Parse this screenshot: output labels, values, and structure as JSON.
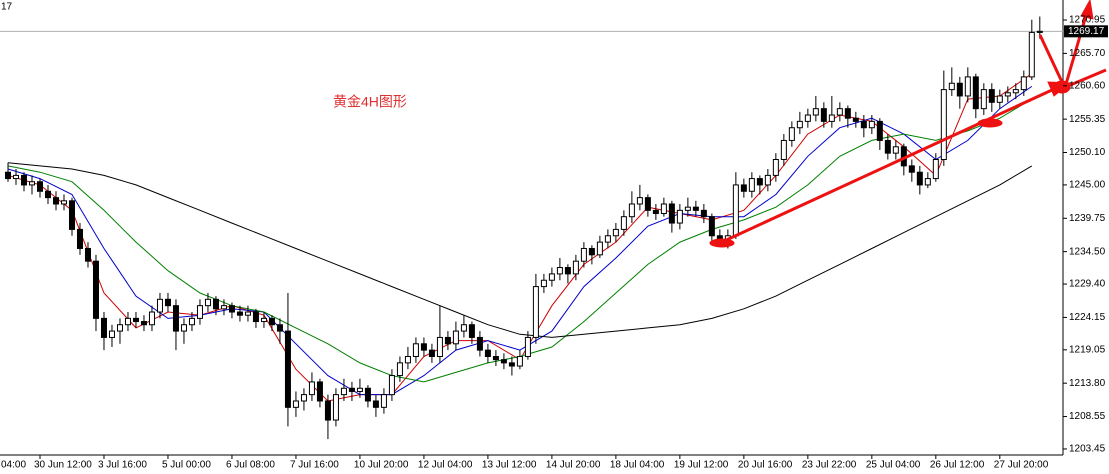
{
  "chart_data": {
    "type": "candlestick",
    "corner_label": "17",
    "annotation": "黄金4H图形",
    "last_price": 1269.17,
    "xlim": [
      -1,
      131.9
    ],
    "ylim": [
      1202.5,
      1274.1
    ],
    "yticks": [
      1203.45,
      1208.55,
      {
        "value": 1213.8,
        "label": "1213.80"
      },
      1219.05,
      1224.15,
      {
        "value": 1229.4,
        "label": "1229.40"
      },
      {
        "value": 1234.5,
        "label": "1234.50"
      },
      1239.75,
      {
        "value": 1245,
        "label": "1245.00"
      },
      {
        "value": 1250.1,
        "label": "1250.10"
      },
      1255.35,
      {
        "value": 1260.6,
        "label": "1260.60"
      },
      {
        "value": 1265.7,
        "label": "1265.70"
      },
      1270.95
    ],
    "xticks": [
      {
        "value": -4,
        "label": "04:00"
      },
      {
        "value": 4,
        "label": "30 Jun 12:00"
      },
      {
        "value": 12,
        "label": "3 Jul 16:00"
      },
      {
        "value": 20,
        "label": "5 Jul 00:00"
      },
      {
        "value": 28,
        "label": "6 Jul 08:00"
      },
      {
        "value": 36,
        "label": "7 Jul 16:00"
      },
      {
        "value": 44,
        "label": "10 Jul 20:00"
      },
      {
        "value": 52,
        "label": "12 Jul 04:00"
      },
      {
        "value": 60,
        "label": "13 Jul 12:00"
      },
      {
        "value": 68,
        "label": "14 Jul 20:00"
      },
      {
        "value": 76,
        "label": "18 Jul 04:00"
      },
      {
        "value": 84,
        "label": "19 Jul 12:00"
      },
      {
        "value": 92,
        "label": "20 Jul 16:00"
      },
      {
        "value": 100,
        "label": "23 Jul 22:00"
      },
      {
        "value": 108,
        "label": "25 Jul 04:00"
      },
      {
        "value": 116,
        "label": "26 Jul 12:00"
      },
      {
        "value": 124,
        "label": "27 Jul 20:00"
      }
    ],
    "up_color": "#ffffff",
    "down_color": "#000000",
    "wick_color": "#000000",
    "ohlc": [
      [
        1247,
        1248.5,
        1245.5,
        1246
      ],
      [
        1246,
        1247.5,
        1245,
        1246.5
      ],
      [
        1246.5,
        1247,
        1244,
        1245
      ],
      [
        1245,
        1246.5,
        1243.5,
        1245.5
      ],
      [
        1245.5,
        1246,
        1243,
        1244
      ],
      [
        1244,
        1245,
        1242,
        1243
      ],
      [
        1243,
        1244,
        1241,
        1242
      ],
      [
        1242,
        1243.5,
        1241,
        1242.5
      ],
      [
        1242.5,
        1243,
        1237,
        1238
      ],
      [
        1238,
        1239,
        1234,
        1235
      ],
      [
        1235,
        1236,
        1232,
        1233
      ],
      [
        1233,
        1234,
        1222,
        1224
      ],
      [
        1224,
        1225,
        1219,
        1221
      ],
      [
        1221,
        1223,
        1219.5,
        1222
      ],
      [
        1222,
        1224,
        1220,
        1223
      ],
      [
        1223,
        1225,
        1222,
        1224
      ],
      [
        1224,
        1225,
        1222.5,
        1223.5
      ],
      [
        1223.5,
        1224.5,
        1222,
        1223
      ],
      [
        1223,
        1226,
        1222,
        1225
      ],
      [
        1225,
        1228,
        1224,
        1227
      ],
      [
        1227,
        1228,
        1225,
        1226
      ],
      [
        1226,
        1227,
        1219,
        1222
      ],
      [
        1222,
        1224,
        1220,
        1223
      ],
      [
        1223,
        1225,
        1222,
        1224
      ],
      [
        1224,
        1227,
        1223,
        1226
      ],
      [
        1226,
        1228,
        1225,
        1227
      ],
      [
        1227,
        1227.5,
        1224.5,
        1225.5
      ],
      [
        1225.5,
        1227,
        1224.5,
        1226
      ],
      [
        1226,
        1226.5,
        1224,
        1225
      ],
      [
        1225,
        1226,
        1223.5,
        1224.5
      ],
      [
        1224.5,
        1226,
        1223.5,
        1225
      ],
      [
        1225,
        1225.5,
        1222.5,
        1223.5
      ],
      [
        1223.5,
        1225,
        1222.5,
        1224
      ],
      [
        1224,
        1224.5,
        1222,
        1223
      ],
      [
        1223,
        1224,
        1220,
        1222
      ],
      [
        1222,
        1228,
        1207,
        1210
      ],
      [
        1210,
        1212.5,
        1208.5,
        1211
      ],
      [
        1211,
        1213,
        1209.5,
        1212
      ],
      [
        1212,
        1215.5,
        1211,
        1214
      ],
      [
        1214,
        1214.5,
        1210,
        1211
      ],
      [
        1211,
        1212,
        1205,
        1208
      ],
      [
        1208,
        1213,
        1207,
        1212
      ],
      [
        1212,
        1214.5,
        1211,
        1213
      ],
      [
        1213,
        1214,
        1211,
        1212.5
      ],
      [
        1212.5,
        1214.5,
        1211.5,
        1213
      ],
      [
        1213,
        1213.5,
        1210,
        1211
      ],
      [
        1211,
        1212,
        1208.5,
        1210
      ],
      [
        1210,
        1213,
        1209,
        1212
      ],
      [
        1212,
        1216,
        1211,
        1215
      ],
      [
        1215,
        1218,
        1214,
        1217
      ],
      [
        1217,
        1219.5,
        1216,
        1218
      ],
      [
        1218,
        1221,
        1217,
        1220
      ],
      [
        1220,
        1221,
        1218,
        1219
      ],
      [
        1219,
        1220,
        1217,
        1218
      ],
      [
        1218,
        1226,
        1217,
        1221
      ],
      [
        1221,
        1222,
        1219,
        1220
      ],
      [
        1220,
        1223.5,
        1219,
        1222
      ],
      [
        1222,
        1224.5,
        1221,
        1223
      ],
      [
        1223,
        1223.5,
        1220,
        1221
      ],
      [
        1221,
        1222,
        1218,
        1219
      ],
      [
        1219,
        1220,
        1217,
        1218
      ],
      [
        1218,
        1219,
        1216.5,
        1217.5
      ],
      [
        1217.5,
        1218.5,
        1216,
        1217
      ],
      [
        1217,
        1218,
        1215,
        1216.5
      ],
      [
        1216.5,
        1219,
        1216,
        1218
      ],
      [
        1218,
        1222,
        1217.5,
        1221
      ],
      [
        1221,
        1231,
        1220,
        1229
      ],
      [
        1229,
        1231,
        1228,
        1230
      ],
      [
        1230,
        1232,
        1229,
        1231
      ],
      [
        1231,
        1233.5,
        1230,
        1232
      ],
      [
        1232,
        1232.5,
        1229.5,
        1231
      ],
      [
        1231,
        1234,
        1230,
        1233
      ],
      [
        1233,
        1236,
        1232,
        1235
      ],
      [
        1235,
        1235.5,
        1232.5,
        1234
      ],
      [
        1234,
        1237,
        1233.5,
        1236
      ],
      [
        1236,
        1238,
        1235,
        1237
      ],
      [
        1237,
        1239,
        1236,
        1238
      ],
      [
        1238,
        1241,
        1237,
        1240
      ],
      [
        1240,
        1244,
        1239,
        1242
      ],
      [
        1242,
        1245,
        1241,
        1243
      ],
      [
        1243,
        1243.5,
        1240,
        1241
      ],
      [
        1241,
        1242,
        1239.5,
        1240.5
      ],
      [
        1240.5,
        1243,
        1240,
        1242
      ],
      [
        1242,
        1242.5,
        1237.5,
        1239
      ],
      [
        1239,
        1242,
        1238,
        1241
      ],
      [
        1241,
        1243,
        1240,
        1241.5
      ],
      [
        1241.5,
        1242.5,
        1240,
        1241
      ],
      [
        1241,
        1242,
        1239,
        1240
      ],
      [
        1240,
        1240.5,
        1236,
        1237
      ],
      [
        1237,
        1238,
        1235.5,
        1236.5
      ],
      [
        1236.5,
        1238,
        1235,
        1237
      ],
      [
        1237,
        1247,
        1236.5,
        1245
      ],
      [
        1245,
        1246,
        1243,
        1244
      ],
      [
        1244,
        1247,
        1243,
        1246
      ],
      [
        1246,
        1246.5,
        1243.5,
        1245
      ],
      [
        1245,
        1247.5,
        1244,
        1246.5
      ],
      [
        1246.5,
        1250,
        1245.5,
        1249
      ],
      [
        1249,
        1253,
        1248,
        1252
      ],
      [
        1252,
        1255,
        1251,
        1254
      ],
      [
        1254,
        1256.5,
        1253,
        1255
      ],
      [
        1255,
        1257,
        1254,
        1256
      ],
      [
        1256,
        1259,
        1255,
        1257
      ],
      [
        1257,
        1258,
        1254,
        1255
      ],
      [
        1255,
        1259,
        1254,
        1256
      ],
      [
        1256,
        1258,
        1255,
        1257
      ],
      [
        1257,
        1257.5,
        1254,
        1255.5
      ],
      [
        1255.5,
        1256.5,
        1254,
        1255
      ],
      [
        1255,
        1256,
        1252.5,
        1254
      ],
      [
        1254,
        1256,
        1253,
        1255
      ],
      [
        1255,
        1255.5,
        1250.5,
        1252
      ],
      [
        1252,
        1253,
        1249,
        1250
      ],
      [
        1250,
        1252,
        1249,
        1251
      ],
      [
        1251,
        1251.5,
        1246.5,
        1248
      ],
      [
        1248,
        1249,
        1245.5,
        1247
      ],
      [
        1247,
        1248,
        1243.5,
        1245
      ],
      [
        1245,
        1247,
        1244.5,
        1246
      ],
      [
        1246,
        1250,
        1245.5,
        1249
      ],
      [
        1249,
        1263,
        1248,
        1260
      ],
      [
        1260,
        1263.5,
        1259,
        1261
      ],
      [
        1261,
        1262,
        1257,
        1259
      ],
      [
        1259,
        1263.5,
        1258,
        1262
      ],
      [
        1262,
        1262.5,
        1255.5,
        1257
      ],
      [
        1257,
        1261,
        1256,
        1260
      ],
      [
        1260,
        1261,
        1256.5,
        1258
      ],
      [
        1258,
        1260,
        1257,
        1259
      ],
      [
        1259,
        1260.5,
        1258,
        1259.5
      ],
      [
        1259.5,
        1261,
        1258.5,
        1260
      ],
      [
        1260,
        1263,
        1259,
        1262
      ],
      [
        1262,
        1271,
        1261.5,
        1269
      ],
      [
        1269,
        1271.5,
        1268,
        1269.17
      ]
    ],
    "moving_averages": [
      {
        "color": "#d00000",
        "x": [
          0,
          4,
          8,
          12,
          16,
          20,
          24,
          28,
          32,
          36,
          40,
          44,
          48,
          52,
          56,
          60,
          64,
          68,
          72,
          76,
          80,
          84,
          88,
          92,
          96,
          100,
          104,
          108,
          112,
          116,
          120,
          124,
          128
        ],
        "values": [
          1246.5,
          1245,
          1241,
          1228,
          1222.5,
          1225,
          1224.5,
          1226,
          1224.5,
          1216,
          1211,
          1212,
          1212,
          1218,
          1220.5,
          1220.5,
          1217.5,
          1226,
          1232.5,
          1236,
          1241.5,
          1240.5,
          1239.5,
          1241,
          1246.5,
          1253,
          1256,
          1255,
          1251,
          1246.5,
          1258.5,
          1259,
          1262.5
        ]
      },
      {
        "color": "#0000cc",
        "x": [
          0,
          4,
          8,
          12,
          16,
          20,
          24,
          28,
          32,
          36,
          40,
          44,
          48,
          52,
          56,
          60,
          64,
          68,
          72,
          76,
          80,
          84,
          88,
          92,
          96,
          100,
          104,
          108,
          112,
          116,
          120,
          124,
          128
        ],
        "values": [
          1247.5,
          1246,
          1243.5,
          1235,
          1227.5,
          1224,
          1224.5,
          1225.5,
          1225,
          1220,
          1215,
          1212,
          1212,
          1215,
          1219,
          1220.5,
          1219,
          1222,
          1229,
          1233.5,
          1238.5,
          1240.5,
          1240,
          1240,
          1243.5,
          1249.5,
          1254,
          1255.5,
          1253,
          1249,
          1252,
          1257,
          1260.5
        ]
      },
      {
        "color": "#008000",
        "x": [
          0,
          4,
          8,
          12,
          16,
          20,
          24,
          28,
          32,
          36,
          40,
          44,
          48,
          52,
          56,
          60,
          64,
          68,
          72,
          76,
          80,
          84,
          88,
          92,
          96,
          100,
          104,
          108,
          112,
          116,
          120,
          124,
          128
        ],
        "values": [
          1248,
          1247,
          1245.5,
          1241,
          1236,
          1231.5,
          1228,
          1226,
          1225,
          1222.5,
          1220,
          1217,
          1215,
          1214,
          1215.5,
          1217,
          1218,
          1219.5,
          1223.5,
          1228,
          1232.5,
          1236,
          1238,
          1239.5,
          1241.5,
          1245,
          1249.5,
          1252,
          1253,
          1252,
          1253.5,
          1255.5,
          1258.5
        ]
      },
      {
        "color": "#000000",
        "x": [
          0,
          4,
          8,
          12,
          16,
          20,
          24,
          28,
          32,
          36,
          40,
          44,
          48,
          52,
          56,
          60,
          64,
          68,
          72,
          76,
          80,
          84,
          88,
          92,
          96,
          100,
          104,
          108,
          112,
          116,
          120,
          124,
          128
        ],
        "values": [
          1248.5,
          1248,
          1247.5,
          1246.5,
          1245,
          1243,
          1241,
          1239,
          1237,
          1235,
          1233,
          1231,
          1229,
          1227,
          1225,
          1223,
          1221.5,
          1221,
          1221.5,
          1222,
          1222.5,
          1223,
          1224,
          1225.5,
          1227.5,
          1230,
          1232.5,
          1235,
          1237.5,
          1240,
          1242.5,
          1245,
          1248
        ]
      }
    ]
  }
}
